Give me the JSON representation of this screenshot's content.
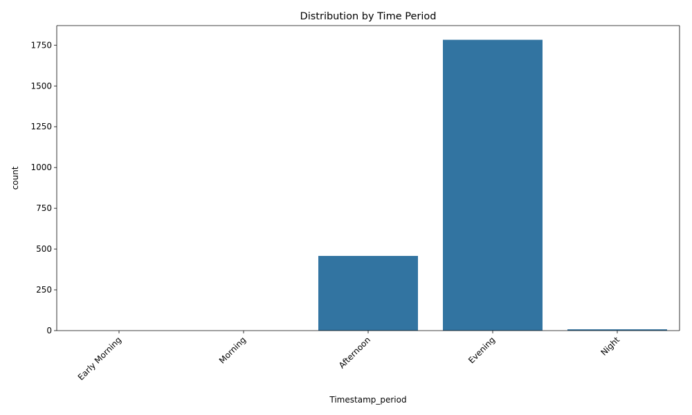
{
  "chart_data": {
    "type": "bar",
    "title": "Distribution by Time Period",
    "xlabel": "Timestamp_period",
    "ylabel": "count",
    "categories": [
      "Early Morning",
      "Morning",
      "Afternoon",
      "Evening",
      "Night"
    ],
    "values": [
      0,
      0,
      458,
      1783,
      8
    ],
    "ylim": [
      0,
      1870
    ],
    "yticks": [
      0,
      250,
      500,
      750,
      1000,
      1250,
      1500,
      1750
    ],
    "bar_color": "#3274a1",
    "grid": false,
    "legend": "none",
    "xtick_rotation": 45
  }
}
